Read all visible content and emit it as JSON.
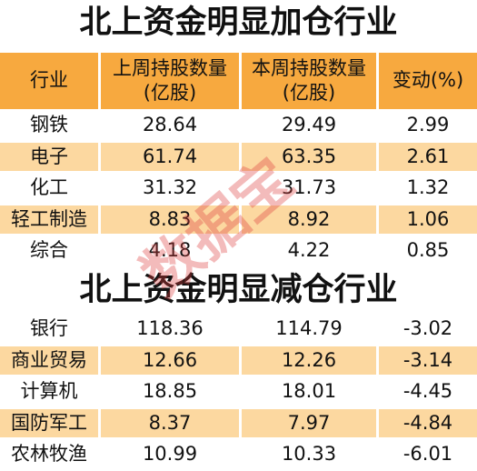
{
  "title_increase": "北上资金明显加仓行业",
  "header": [
    [
      "行业"
    ],
    [
      "上周持股数量",
      "(亿股)"
    ],
    [
      "本周持股数量",
      "(亿股)"
    ],
    [
      "变动(%)"
    ]
  ],
  "increase_rows": [
    [
      "钢铁",
      28.64,
      29.49,
      2.99
    ],
    [
      "电子",
      61.74,
      63.35,
      2.61
    ],
    [
      "化工",
      31.32,
      31.73,
      1.32
    ],
    [
      "轻工制造",
      8.83,
      8.92,
      1.06
    ],
    [
      "综合",
      4.18,
      4.22,
      0.85
    ]
  ],
  "title_decrease": "北上资金明显减仓行业",
  "decrease_rows": [
    [
      "银行",
      118.36,
      114.79,
      -3.02
    ],
    [
      "商业贸易",
      12.66,
      12.26,
      -3.14
    ],
    [
      "计算机",
      18.85,
      18.01,
      -4.45
    ],
    [
      "国防军工",
      8.37,
      7.97,
      -4.84
    ],
    [
      "农林牧渔",
      10.99,
      10.33,
      -6.01
    ]
  ],
  "watermark": "数据宝"
}
